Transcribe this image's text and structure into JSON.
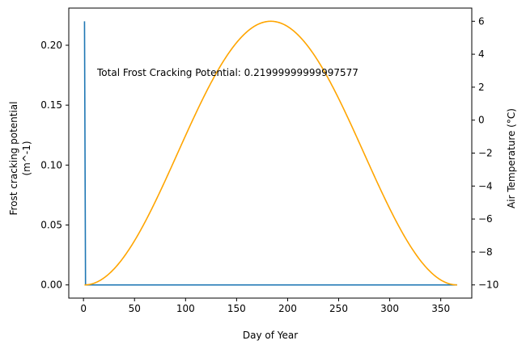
{
  "chart_data": {
    "type": "line",
    "xlabel": "Day of Year",
    "ylabel_left_line1": "Frost cracking potential",
    "ylabel_left_line2": "(m^-1)",
    "ylabel_right": "Air Temperature (°C)",
    "annotation": "Total Frost Cracking Potential: 0.21999999999997577",
    "xlim": [
      -14.4,
      380.4
    ],
    "ylim_left": [
      -0.011,
      0.231
    ],
    "ylim_right": [
      -10.8,
      6.8
    ],
    "xticks": [
      0,
      50,
      100,
      150,
      200,
      250,
      300,
      350
    ],
    "yticks_left": [
      "0.00",
      "0.05",
      "0.10",
      "0.15",
      "0.20"
    ],
    "yticks_right": [
      "−10",
      "−8",
      "−6",
      "−4",
      "−2",
      "0",
      "2",
      "4",
      "6"
    ],
    "grid": false,
    "series": [
      {
        "axis": "left",
        "color": "#1f77b4",
        "x": [
          1,
          2,
          366
        ],
        "y": [
          0.22,
          0.0,
          0.0
        ]
      },
      {
        "axis": "right",
        "color": "#ffa500",
        "x_start": 1,
        "x_end": 366,
        "model": "sinusoid",
        "min": -10,
        "max": 6,
        "peak_day": 183.5
      }
    ]
  }
}
